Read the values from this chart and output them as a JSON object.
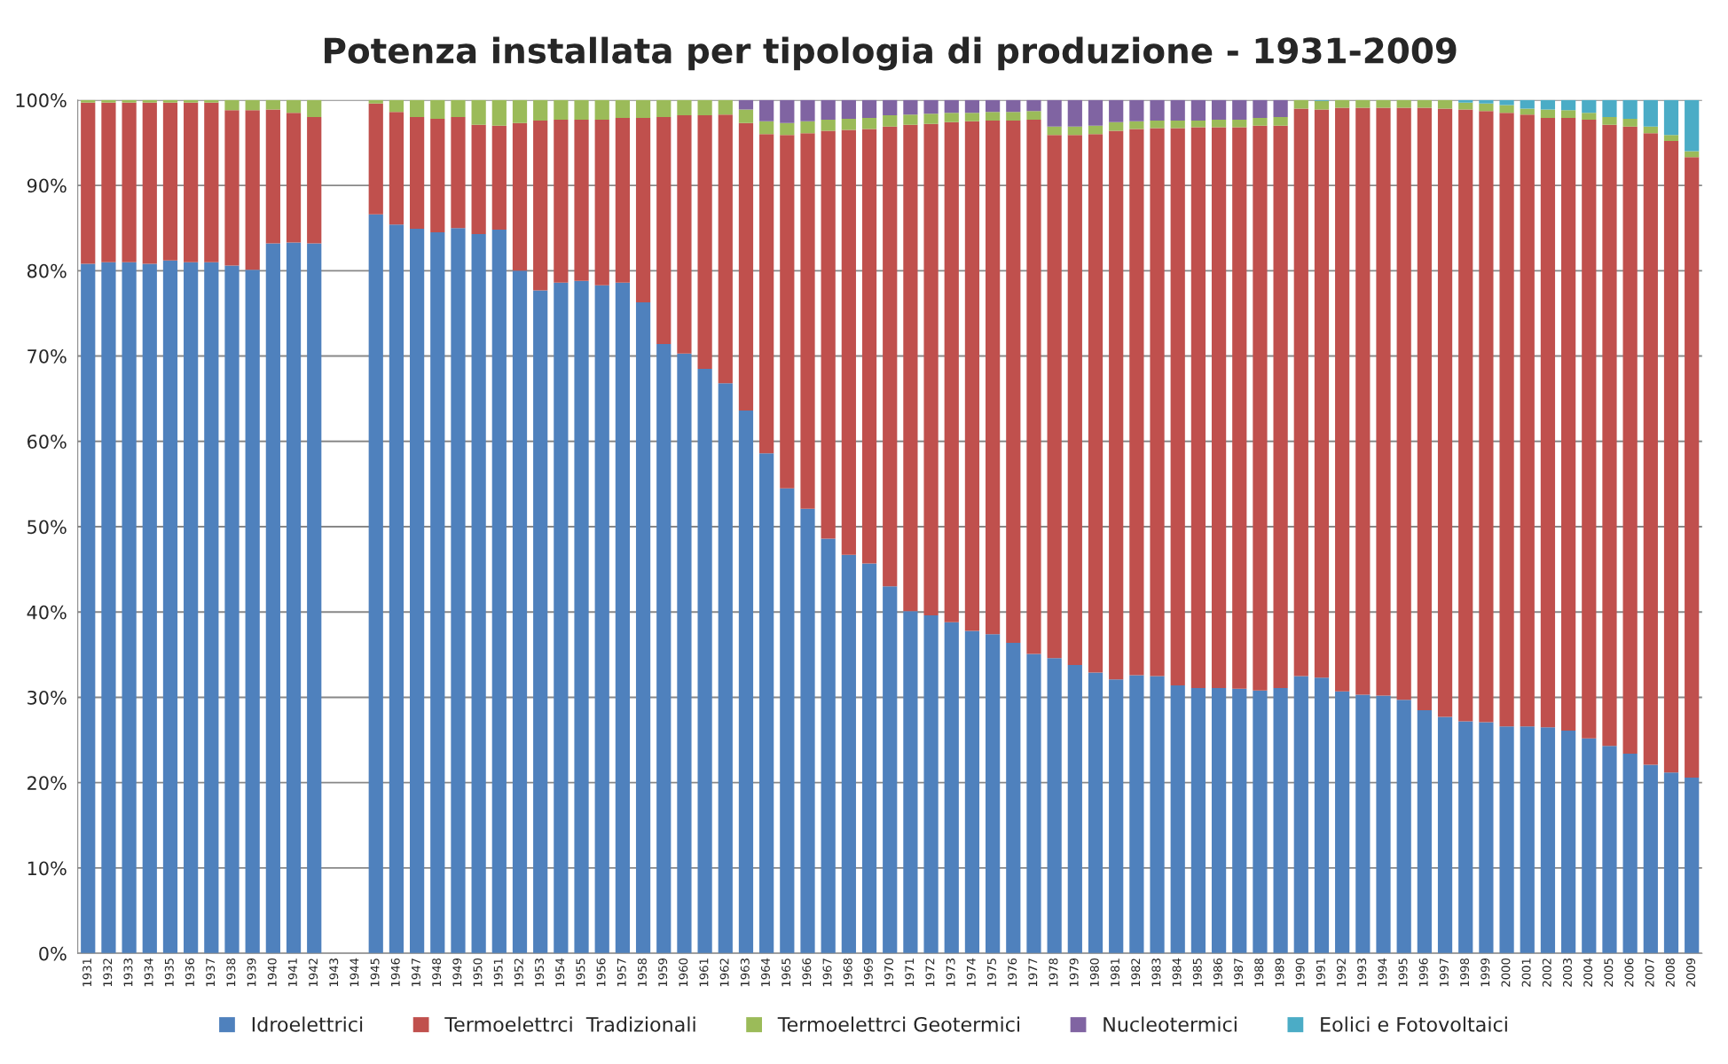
{
  "chart_data": {
    "type": "bar",
    "stacked": true,
    "title": "Potenza installata per tipologia di produzione - 1931-2009",
    "categories": [
      "1931",
      "1932",
      "1933",
      "1934",
      "1935",
      "1936",
      "1937",
      "1938",
      "1939",
      "1940",
      "1941",
      "1942",
      "1943",
      "1944",
      "1945",
      "1946",
      "1947",
      "1948",
      "1949",
      "1950",
      "1951",
      "1952",
      "1953",
      "1954",
      "1955",
      "1956",
      "1957",
      "1958",
      "1959",
      "1960",
      "1961",
      "1962",
      "1963",
      "1964",
      "1965",
      "1966",
      "1967",
      "1968",
      "1969",
      "1970",
      "1971",
      "1972",
      "1973",
      "1974",
      "1975",
      "1976",
      "1977",
      "1978",
      "1979",
      "1980",
      "1981",
      "1982",
      "1983",
      "1984",
      "1985",
      "1986",
      "1987",
      "1988",
      "1989",
      "1990",
      "1991",
      "1992",
      "1993",
      "1994",
      "1995",
      "1996",
      "1997",
      "1998",
      "1999",
      "2000",
      "2001",
      "2002",
      "2003",
      "2004",
      "2005",
      "2006",
      "2007",
      "2008",
      "2009"
    ],
    "series": [
      {
        "name": "Idroelettrici",
        "color": "#4f81bd",
        "values": [
          80.8,
          81.0,
          81.0,
          80.8,
          81.2,
          81.0,
          81.0,
          80.6,
          80.1,
          83.2,
          83.3,
          83.2,
          null,
          null,
          86.6,
          85.4,
          84.9,
          84.5,
          85.0,
          84.3,
          84.8,
          80.0,
          77.7,
          78.6,
          78.8,
          78.3,
          78.6,
          76.3,
          71.4,
          70.3,
          68.5,
          66.8,
          63.6,
          58.6,
          54.5,
          52.1,
          48.6,
          46.7,
          45.7,
          43.0,
          40.1,
          39.6,
          38.8,
          37.8,
          37.4,
          36.4,
          35.1,
          34.6,
          33.8,
          32.9,
          32.1,
          32.6,
          32.5,
          31.4,
          31.1,
          31.1,
          31.0,
          30.8,
          31.1,
          32.5,
          32.3,
          30.7,
          30.3,
          30.2,
          29.7,
          28.5,
          27.7,
          27.2,
          27.1,
          26.6,
          26.6,
          26.5,
          26.1,
          25.2,
          24.3,
          23.4,
          22.1,
          21.2,
          20.6
        ]
      },
      {
        "name": "Termoelettrci  Tradizionali",
        "color": "#c0504d",
        "values": [
          18.9,
          18.7,
          18.7,
          18.9,
          18.5,
          18.7,
          18.7,
          18.2,
          18.7,
          15.7,
          15.2,
          14.8,
          null,
          null,
          13.0,
          13.2,
          13.1,
          13.3,
          13.0,
          12.8,
          12.2,
          17.3,
          19.9,
          19.1,
          18.9,
          19.4,
          19.3,
          21.6,
          26.6,
          27.9,
          29.7,
          31.5,
          33.7,
          37.4,
          41.4,
          44.0,
          47.8,
          49.8,
          50.9,
          53.9,
          57.0,
          57.6,
          58.6,
          59.7,
          60.2,
          61.2,
          62.6,
          61.3,
          62.1,
          63.1,
          64.3,
          64.0,
          64.2,
          65.3,
          65.7,
          65.7,
          65.8,
          66.2,
          65.9,
          66.5,
          66.6,
          68.4,
          68.8,
          68.9,
          69.4,
          70.6,
          71.3,
          71.7,
          71.6,
          71.9,
          71.7,
          71.4,
          71.8,
          72.5,
          72.8,
          73.5,
          74.0,
          74.0,
          72.7
        ]
      },
      {
        "name": "Termoelettrci Geotermici",
        "color": "#9bbb59",
        "values": [
          0.3,
          0.3,
          0.3,
          0.3,
          0.3,
          0.3,
          0.3,
          1.2,
          1.2,
          1.1,
          1.5,
          2.0,
          null,
          null,
          0.4,
          1.4,
          2.0,
          2.2,
          2.0,
          2.9,
          3.0,
          2.7,
          2.4,
          2.3,
          2.3,
          2.3,
          2.1,
          2.1,
          2.0,
          1.8,
          1.8,
          1.7,
          1.6,
          1.5,
          1.4,
          1.4,
          1.3,
          1.3,
          1.3,
          1.3,
          1.2,
          1.2,
          1.1,
          1.0,
          1.0,
          1.0,
          1.0,
          1.0,
          1.0,
          1.0,
          1.0,
          0.9,
          0.9,
          0.9,
          0.8,
          0.9,
          0.9,
          0.9,
          1.0,
          1.0,
          1.0,
          0.9,
          0.9,
          0.9,
          0.9,
          0.9,
          1.0,
          0.8,
          0.9,
          0.9,
          0.7,
          1.0,
          0.9,
          0.8,
          0.9,
          0.9,
          0.8,
          0.7,
          0.7
        ]
      },
      {
        "name": "Nucleotermici",
        "color": "#8064a2",
        "values": [
          0,
          0,
          0,
          0,
          0,
          0,
          0,
          0,
          0,
          0,
          0,
          0,
          null,
          null,
          0,
          0,
          0,
          0,
          0,
          0,
          0,
          0,
          0,
          0,
          0,
          0,
          0,
          0,
          0,
          0,
          0,
          0,
          1.1,
          2.5,
          2.7,
          2.5,
          2.3,
          2.2,
          2.1,
          1.8,
          1.7,
          1.6,
          1.5,
          1.5,
          1.4,
          1.4,
          1.3,
          3.1,
          3.1,
          3.0,
          2.6,
          2.5,
          2.4,
          2.4,
          2.4,
          2.3,
          2.3,
          2.1,
          2.0,
          0,
          0,
          0,
          0,
          0,
          0,
          0,
          0,
          0,
          0,
          0,
          0,
          0,
          0,
          0,
          0,
          0,
          0,
          0,
          0
        ]
      },
      {
        "name": "Eolici e Fotovoltaici",
        "color": "#4bacc6",
        "values": [
          0,
          0,
          0,
          0,
          0,
          0,
          0,
          0,
          0,
          0,
          0,
          0,
          null,
          null,
          0,
          0,
          0,
          0,
          0,
          0,
          0,
          0,
          0,
          0,
          0,
          0,
          0,
          0,
          0,
          0,
          0,
          0,
          0,
          0,
          0,
          0,
          0,
          0,
          0,
          0,
          0,
          0,
          0,
          0,
          0,
          0,
          0,
          0,
          0,
          0,
          0,
          0,
          0,
          0,
          0,
          0,
          0,
          0,
          0,
          0,
          0.1,
          0,
          0,
          0,
          0,
          0,
          0,
          0.3,
          0.4,
          0.6,
          1.0,
          1.1,
          1.2,
          1.5,
          2.0,
          2.2,
          3.1,
          4.1,
          6.0
        ]
      }
    ],
    "ylim": [
      0,
      100
    ],
    "yticks": [
      {
        "value": 0,
        "label": "0%"
      },
      {
        "value": 10,
        "label": "10%"
      },
      {
        "value": 20,
        "label": "20%"
      },
      {
        "value": 30,
        "label": "30%"
      },
      {
        "value": 40,
        "label": "40%"
      },
      {
        "value": 50,
        "label": "50%"
      },
      {
        "value": 60,
        "label": "60%"
      },
      {
        "value": 70,
        "label": "70%"
      },
      {
        "value": 80,
        "label": "80%"
      },
      {
        "value": 90,
        "label": "90%"
      },
      {
        "value": 100,
        "label": "100%"
      }
    ],
    "grid": "y",
    "legend": "bottom"
  }
}
